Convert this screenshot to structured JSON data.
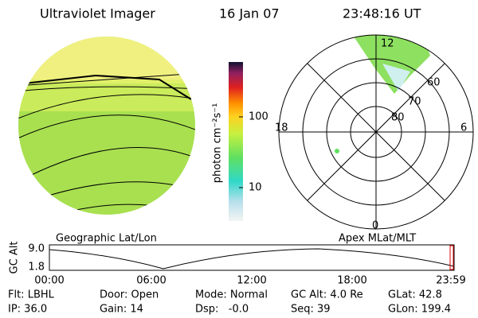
{
  "header": {
    "title": "Ultraviolet Imager",
    "date": "16 Jan 07",
    "time": "23:48:16 UT"
  },
  "colorbar": {
    "label": "photon cm⁻²s⁻¹",
    "ticks": [
      "100",
      "10"
    ]
  },
  "polar": {
    "labels": [
      "12",
      "18",
      "6",
      "0",
      "60",
      "70",
      "80"
    ]
  },
  "captions": {
    "left": "Geographic Lat/Lon",
    "right": "Apex MLat/MLT"
  },
  "altitude_plot": {
    "ylabel": "GC Alt",
    "yticks": [
      "9.0",
      "1.8"
    ],
    "xticks": [
      "00:00",
      "06:00",
      "12:00",
      "18:00",
      "23:59"
    ]
  },
  "info": {
    "rows": [
      [
        "Flt: LBHL",
        "Door: Open",
        "Mode: Normal",
        "GC Alt: 4.0 Re",
        "GLat: 42.8"
      ],
      [
        "IP: 36.0",
        "Gain: 14",
        "Dsp:   -0.0",
        "Seq: 39",
        "GLon: 199.4"
      ]
    ]
  }
}
